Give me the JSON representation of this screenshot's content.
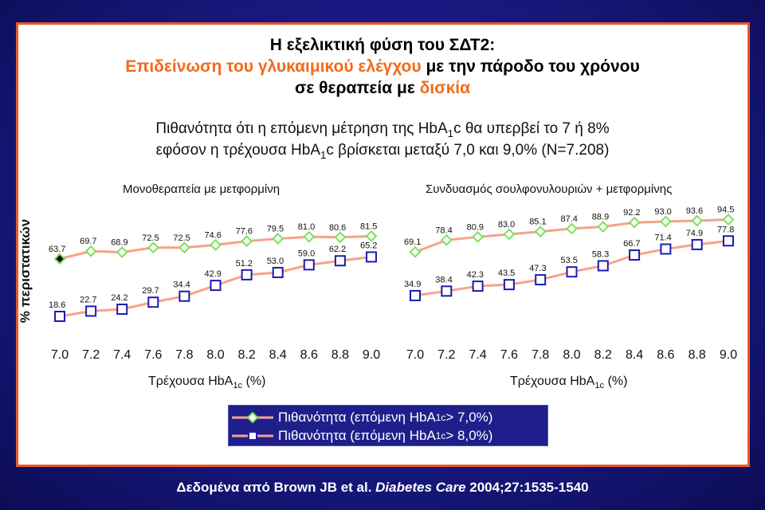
{
  "header": {
    "title_line1": "Η εξελικτική φύση του ΣΔΤ2:",
    "title_line2_a": "Επιδείνωση του γλυκαιμικού ελέγχου",
    "title_line2_b": " με την πάροδο του χρόνου",
    "title_line3_a": "σε θεραπεία με ",
    "title_line3_b": "δισκία",
    "subtitle_line1_a": "Πιθανότητα ότι η επόμενη μέτρηση της HbA",
    "subtitle_line1_sub": "1",
    "subtitle_line1_b": "c θα υπερβεί το 7 ή 8%",
    "subtitle_line2_a": "εφόσον η τρέχουσα HbA",
    "subtitle_line2_sub": "1",
    "subtitle_line2_b": "c βρίσκεται μεταξύ 7,0 και 9,0% (N=7.208)"
  },
  "y_axis_label": "% περιστατικών",
  "x_axis_label_a": "Τρέχουσα HbA",
  "x_axis_label_sub": "1c",
  "x_axis_label_b": " (%)",
  "legend": {
    "gt7_a": "Πιθανότητα (επόμενη HbA",
    "gt7_sub": "1c",
    "gt7_b": " > 7,0%)",
    "gt8_a": "Πιθανότητα (επόμενη HbA",
    "gt8_sub": "1c",
    "gt8_b": " > 8,0%)"
  },
  "source_a": "Δεδομένα από Brown JB et al. ",
  "source_journal": "Diabetes Care",
  "source_b": " 2004;27:1535-1540",
  "colors": {
    "line": "#f6a38a",
    "gt7_marker": "#7ee05a",
    "gt8_marker": "#1c1cb0",
    "frame": "#e8582a"
  },
  "chart_data": [
    {
      "type": "line",
      "title": "Μονοθεραπεία με μετφορμίνη",
      "x": [
        "7.0",
        "7.2",
        "7.4",
        "7.6",
        "7.8",
        "8.0",
        "8.2",
        "8.4",
        "8.6",
        "8.8",
        "9.0"
      ],
      "series": [
        {
          "name": "Πιθανότητα (επόμενη HbA1c > 7,0%)",
          "values": [
            63.7,
            69.7,
            68.9,
            72.5,
            72.5,
            74.6,
            77.6,
            79.5,
            81.0,
            80.6,
            81.5
          ]
        },
        {
          "name": "Πιθανότητα (επόμενη HbA1c > 8,0%)",
          "values": [
            18.6,
            22.7,
            24.2,
            29.7,
            34.4,
            42.9,
            51.2,
            53.0,
            59.0,
            62.2,
            65.2
          ]
        }
      ],
      "xlabel": "Τρέχουσα HbA1c (%)",
      "ylabel": "% περιστατικών",
      "grid": false
    },
    {
      "type": "line",
      "title": "Συνδυασμός σουλφονυλουριών + μετφορμίνης",
      "x": [
        "7.0",
        "7.2",
        "7.4",
        "7.6",
        "7.8",
        "8.0",
        "8.2",
        "8.4",
        "8.6",
        "8.8",
        "9.0"
      ],
      "series": [
        {
          "name": "Πιθανότητα (επόμενη HbA1c > 7,0%)",
          "values": [
            69.1,
            78.4,
            80.9,
            83.0,
            85.1,
            87.4,
            88.9,
            92.2,
            93.0,
            93.6,
            94.5
          ]
        },
        {
          "name": "Πιθανότητα (επόμενη HbA1c > 8,0%)",
          "values": [
            34.9,
            38.4,
            42.3,
            43.5,
            47.3,
            53.5,
            58.3,
            66.7,
            71.4,
            74.9,
            77.8
          ]
        }
      ],
      "xlabel": "Τρέχουσα HbA1c (%)",
      "ylabel": "% περιστατικών",
      "grid": false
    }
  ]
}
